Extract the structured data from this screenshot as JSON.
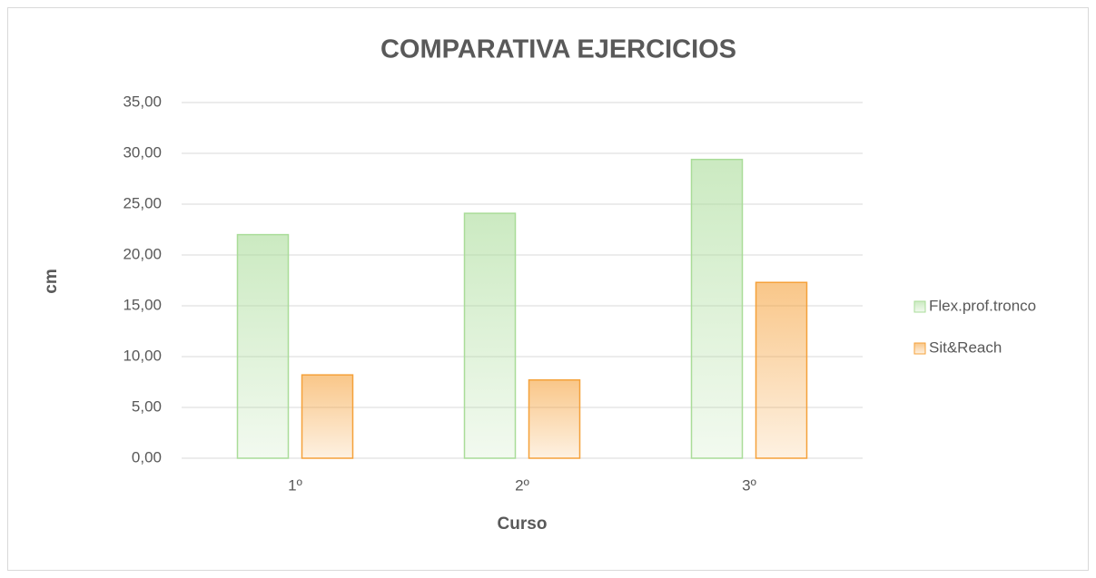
{
  "chart_data": {
    "type": "bar",
    "title": "COMPARATIVA EJERCICIOS",
    "x_label": "Curso",
    "y_label": "cm",
    "categories": [
      "1º",
      "2º",
      "3º"
    ],
    "series": [
      {
        "name": "Flex.prof.tronco",
        "color": "#a9dc98",
        "values": [
          22.0,
          24.1,
          29.4
        ]
      },
      {
        "name": "Sit&Reach",
        "color": "#f5a13a",
        "values": [
          8.2,
          7.7,
          17.3
        ]
      }
    ],
    "ylim": [
      0,
      35
    ],
    "yticks": [
      {
        "value": 0,
        "label": "0,00"
      },
      {
        "value": 5,
        "label": "5,00"
      },
      {
        "value": 10,
        "label": "10,00"
      },
      {
        "value": 15,
        "label": "15,00"
      },
      {
        "value": 20,
        "label": "20,00"
      },
      {
        "value": 25,
        "label": "25,00"
      },
      {
        "value": 30,
        "label": "30,00"
      },
      {
        "value": 35,
        "label": "35,00"
      }
    ],
    "grid": true,
    "legend": "right"
  }
}
